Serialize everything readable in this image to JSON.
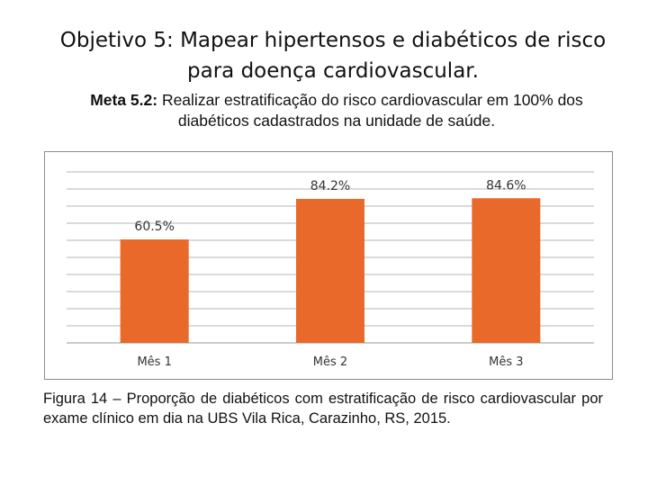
{
  "heading": {
    "line1": "Objetivo 5: Mapear hipertensos e diabéticos de risco",
    "line2": "para doença cardiovascular."
  },
  "meta": {
    "label": "Meta 5.2:",
    "text_line1": " Realizar estratificação do risco cardiovascular em 100% dos",
    "text_line2": "diabéticos cadastrados na unidade de saúde."
  },
  "chart_data": {
    "type": "bar",
    "title": "",
    "xlabel": "",
    "ylabel": "",
    "categories": [
      "Mês 1",
      "Mês 2",
      "Mês 3"
    ],
    "values": [
      60.5,
      84.2,
      84.6
    ],
    "data_labels": [
      "60.5%",
      "84.2%",
      "84.6%"
    ],
    "ylim": [
      0,
      100
    ],
    "grid": true,
    "bar_color": "#e8692a"
  },
  "caption": "Figura 14 – Proporção de diabéticos com estratificação de risco cardiovascular por exame clínico em dia na UBS Vila Rica, Carazinho, RS, 2015."
}
